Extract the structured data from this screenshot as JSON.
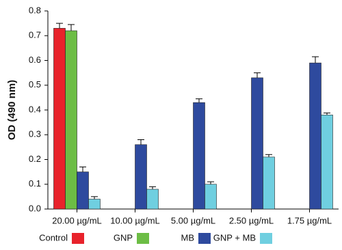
{
  "chart_data": {
    "type": "bar",
    "ylabel": "OD (490 nm)",
    "categories": [
      "20.00 µg/mL",
      "10.00 µg/mL",
      "5.00 µg/mL",
      "2.50 µg/mL",
      "1.75 µg/mL"
    ],
    "series": [
      {
        "name": "Control",
        "color": "#e8222b",
        "values": [
          0.73,
          null,
          null,
          null,
          null
        ],
        "errors": [
          0.02,
          null,
          null,
          null,
          null
        ]
      },
      {
        "name": "GNP",
        "color": "#6cbd45",
        "values": [
          0.72,
          null,
          null,
          null,
          null
        ],
        "errors": [
          0.025,
          null,
          null,
          null,
          null
        ]
      },
      {
        "name": "MB",
        "color": "#2e4a9e",
        "values": [
          0.15,
          0.26,
          0.43,
          0.53,
          0.59
        ],
        "errors": [
          0.02,
          0.02,
          0.015,
          0.02,
          0.025
        ]
      },
      {
        "name": "GNP + MB",
        "color": "#6fcfe0",
        "values": [
          0.04,
          0.08,
          0.1,
          0.21,
          0.38
        ],
        "errors": [
          0.01,
          0.01,
          0.01,
          0.01,
          0.008
        ]
      }
    ],
    "ylim": [
      0,
      0.8
    ],
    "yticks": [
      {
        "value": 0,
        "label": "0.0"
      },
      0.1,
      0.2,
      0.3,
      0.4,
      0.5,
      0.6,
      0.7,
      0.8
    ]
  }
}
